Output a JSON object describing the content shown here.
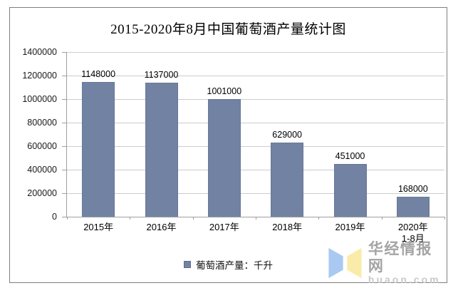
{
  "title": "2015-2020年8月中国葡萄酒产量统计图",
  "chart_data": {
    "type": "bar",
    "title": "2015-2020年8月中国葡萄酒产量统计图",
    "categories": [
      "2015年",
      "2016年",
      "2017年",
      "2018年",
      "2019年",
      "2020年\n1-8月"
    ],
    "values": [
      1148000,
      1137000,
      1001000,
      629000,
      451000,
      168000
    ],
    "series": [
      {
        "name": "葡萄酒产量：千升",
        "values": [
          1148000,
          1137000,
          1001000,
          629000,
          451000,
          168000
        ]
      }
    ],
    "xlabel": "",
    "ylabel": "",
    "ylim": [
      0,
      1400000
    ],
    "yticks": [
      0,
      200000,
      400000,
      600000,
      800000,
      1000000,
      1200000,
      1400000
    ],
    "grid": true,
    "data_labels": true,
    "legend_position": "bottom"
  },
  "legend": {
    "label": "葡萄酒产量：千升"
  },
  "watermark": {
    "name": "华经情报网",
    "domain": "huaon.com"
  },
  "colors": {
    "bar": "#7282A2",
    "bar_border": "#67779b",
    "grid": "#cccccc",
    "axis": "#9f9f9f",
    "frame_border": "#7f7f7f",
    "watermark_blue": "#A9C9F2",
    "watermark_yellow": "#FAEBA8",
    "watermark_text": "#a4a4a4",
    "watermark_domain": "#c9c9c9"
  }
}
